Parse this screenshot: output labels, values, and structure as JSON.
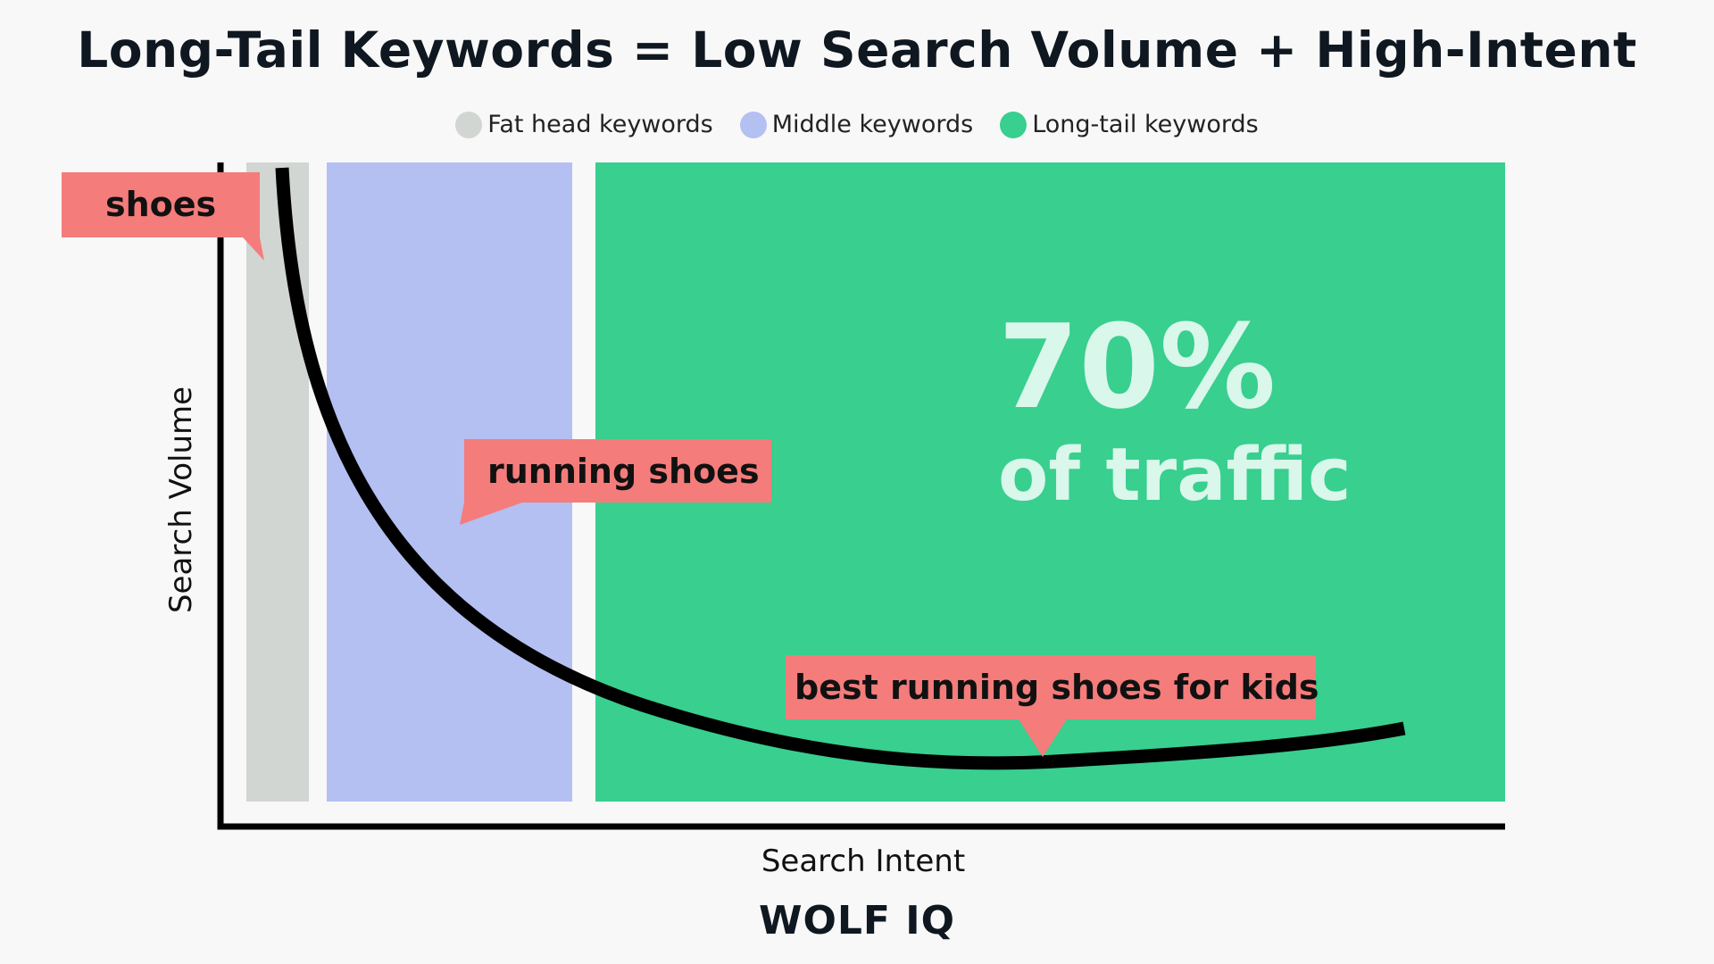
{
  "title": "Long-Tail Keywords = Low Search Volume + High-Intent",
  "logo": "WOLF IQ",
  "colors": {
    "fat_head": "#d1d6d2",
    "middle": "#b4bff2",
    "long_tail": "#38cf8f",
    "callout": "#f47c7b",
    "curve": "#000000",
    "background": "#f8f8f8"
  },
  "legend": [
    {
      "label": "Fat head keywords",
      "color": "#d1d6d2"
    },
    {
      "label": "Middle keywords",
      "color": "#b4bff2"
    },
    {
      "label": "Long-tail keywords",
      "color": "#38cf8f"
    }
  ],
  "chart_data": {
    "type": "area",
    "title": "Long-Tail Keywords = Low Search Volume + High-Intent",
    "xlabel": "Search Intent",
    "ylabel": "Search Volume",
    "grid": false,
    "legend_position": "top-center",
    "regions": [
      {
        "name": "Fat head keywords",
        "color": "#d1d6d2"
      },
      {
        "name": "Middle keywords",
        "color": "#b4bff2"
      },
      {
        "name": "Long-tail keywords",
        "color": "#38cf8f"
      }
    ],
    "annotations": [
      {
        "label": "shoes",
        "region": "Fat head keywords"
      },
      {
        "label": "running shoes",
        "region": "Middle keywords"
      },
      {
        "label": "best running shoes for kids",
        "region": "Long-tail keywords"
      }
    ],
    "highlight": {
      "value": "70%",
      "text": "of traffic",
      "region": "Long-tail keywords"
    }
  }
}
